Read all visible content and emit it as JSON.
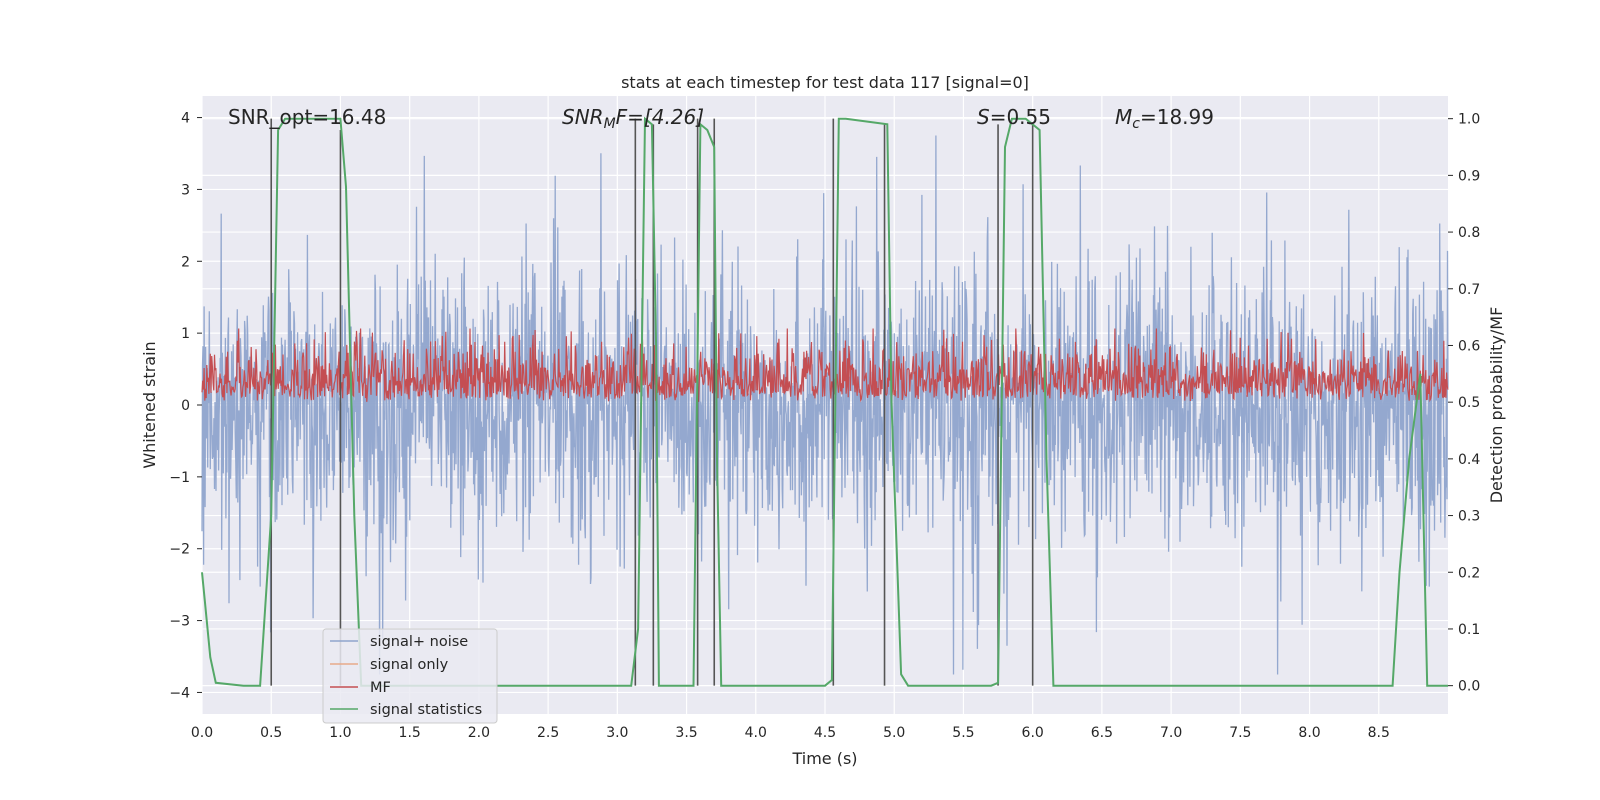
{
  "chart_data": {
    "type": "line",
    "title": "stats at each timestep for test data 117 [signal=0]",
    "xlabel": "Time (s)",
    "ylabel": "Whitened strain",
    "y2label": "Detection probability/MF",
    "xlim": [
      0.0,
      9.0
    ],
    "ylim": [
      -4.3,
      4.3
    ],
    "y2lim": [
      -0.05,
      1.04
    ],
    "grid": true,
    "legend_position": "lower-left",
    "x_ticks": [
      "0.0",
      "0.5",
      "1.0",
      "1.5",
      "2.0",
      "2.5",
      "3.0",
      "3.5",
      "4.0",
      "4.5",
      "5.0",
      "5.5",
      "6.0",
      "6.5",
      "7.0",
      "7.5",
      "8.0",
      "8.5"
    ],
    "x_tick_values": [
      0.0,
      0.5,
      1.0,
      1.5,
      2.0,
      2.5,
      3.0,
      3.5,
      4.0,
      4.5,
      5.0,
      5.5,
      6.0,
      6.5,
      7.0,
      7.5,
      8.0,
      8.5
    ],
    "y_ticks": [
      "−4",
      "−3",
      "−2",
      "−1",
      "0",
      "1",
      "2",
      "3",
      "4"
    ],
    "y_tick_values": [
      -4,
      -3,
      -2,
      -1,
      0,
      1,
      2,
      3,
      4
    ],
    "y2_ticks": [
      "0.0",
      "0.1",
      "0.2",
      "0.3",
      "0.4",
      "0.5",
      "0.6",
      "0.7",
      "0.8",
      "0.9",
      "1.0"
    ],
    "y2_tick_values": [
      0.0,
      0.1,
      0.2,
      0.3,
      0.4,
      0.5,
      0.6,
      0.7,
      0.8,
      0.9,
      1.0
    ],
    "annotations": {
      "snr_opt": "SNR_opt=16.48",
      "snr_mf_label": "SNR",
      "snr_mf_sub": "M",
      "snr_mf_rest": "F=[4.26]",
      "s_label": "S",
      "s_value": "=0.55",
      "mc_label": "M",
      "mc_sub": "c",
      "mc_value": "=18.99"
    },
    "series": [
      {
        "name": "signal+ noise",
        "color": "#8fa4cc",
        "axis": "left",
        "description": "dense whitened strain noise, amplitude roughly ±1.5 with spikes to ±3.7",
        "amplitude": 1.5
      },
      {
        "name": "signal only",
        "color": "#e8a98a",
        "axis": "left",
        "x": [],
        "y": []
      },
      {
        "name": "MF",
        "color": "#c44e52",
        "axis": "right",
        "description": "matched filter output fluctuating between about 0.5 and 0.6",
        "baseline": 0.5,
        "spread": 0.1
      },
      {
        "name": "signal statistics",
        "color": "#55a868",
        "axis": "right",
        "x": [
          0.0,
          0.02,
          0.06,
          0.1,
          0.3,
          0.42,
          0.5,
          0.55,
          0.6,
          0.65,
          0.95,
          1.0,
          1.04,
          1.1,
          1.15,
          3.1,
          3.15,
          3.2,
          3.25,
          3.28,
          3.3,
          3.35,
          3.55,
          3.6,
          3.65,
          3.7,
          3.72,
          3.75,
          4.0,
          4.5,
          4.55,
          4.6,
          4.65,
          4.95,
          4.98,
          5.05,
          5.1,
          5.7,
          5.75,
          5.8,
          5.85,
          5.95,
          6.05,
          6.1,
          6.15,
          6.5,
          7.0,
          7.5,
          8.0,
          8.5,
          8.6,
          8.65,
          8.72,
          8.8,
          8.85,
          9.0
        ],
        "y": [
          0.2,
          0.15,
          0.05,
          0.005,
          0.0,
          0.0,
          0.3,
          0.98,
          1.0,
          1.0,
          1.0,
          1.0,
          0.88,
          0.3,
          0.0,
          0.0,
          0.1,
          1.0,
          0.99,
          0.6,
          0.0,
          0.0,
          0.0,
          0.99,
          0.98,
          0.95,
          0.4,
          0.0,
          0.0,
          0.0,
          0.01,
          1.0,
          1.0,
          0.99,
          0.5,
          0.02,
          0.0,
          0.0,
          0.005,
          0.95,
          1.0,
          1.0,
          0.98,
          0.4,
          0.0,
          0.0,
          0.0,
          0.0,
          0.0,
          0.0,
          0.0,
          0.2,
          0.4,
          0.55,
          0.0,
          0.0
        ]
      }
    ],
    "vertical_markers": {
      "color": "#555555",
      "x": [
        0.5,
        1.0,
        3.13,
        3.26,
        3.58,
        3.7,
        4.56,
        4.93,
        5.75,
        6.0
      ],
      "top": [
        1.0,
        0.98,
        1.0,
        0.99,
        1.0,
        1.0,
        1.0,
        0.99,
        0.99,
        0.99
      ]
    }
  }
}
